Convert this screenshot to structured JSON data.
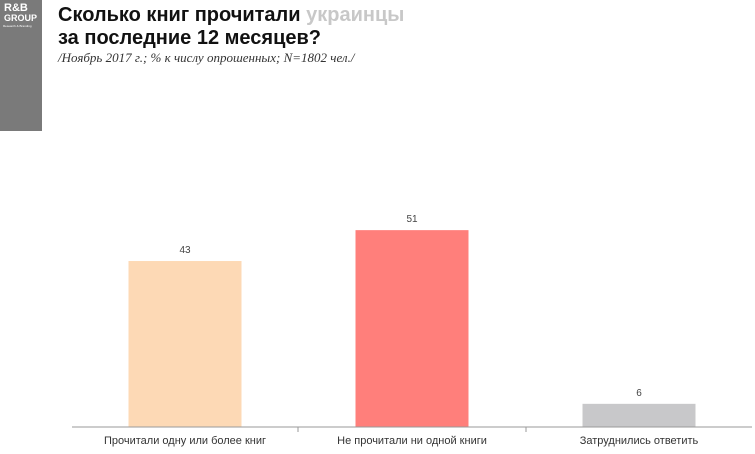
{
  "logo": {
    "line1": "R&B",
    "line2": "GROUP",
    "line3": "Research & Branding"
  },
  "header": {
    "title_part1": "Сколько книг прочитали ",
    "title_accent": "украинцы",
    "title_line2": "за последние 12 месяцев?",
    "subtitle": "/Ноябрь 2017 г.; % к числу опрошенных; N=1802 чел./"
  },
  "chart_data": {
    "type": "bar",
    "categories": [
      "Прочитали одну или более книг",
      "Не прочитали ни одной книги",
      "Затруднились ответить"
    ],
    "values": [
      43,
      51,
      6
    ],
    "data_labels": [
      "43",
      "51",
      "6"
    ],
    "colors": [
      "#fdd9b5",
      "#ff7f7b",
      "#c8c8ca"
    ],
    "ylim": [
      0,
      100
    ],
    "grid": false,
    "legend": "none"
  }
}
